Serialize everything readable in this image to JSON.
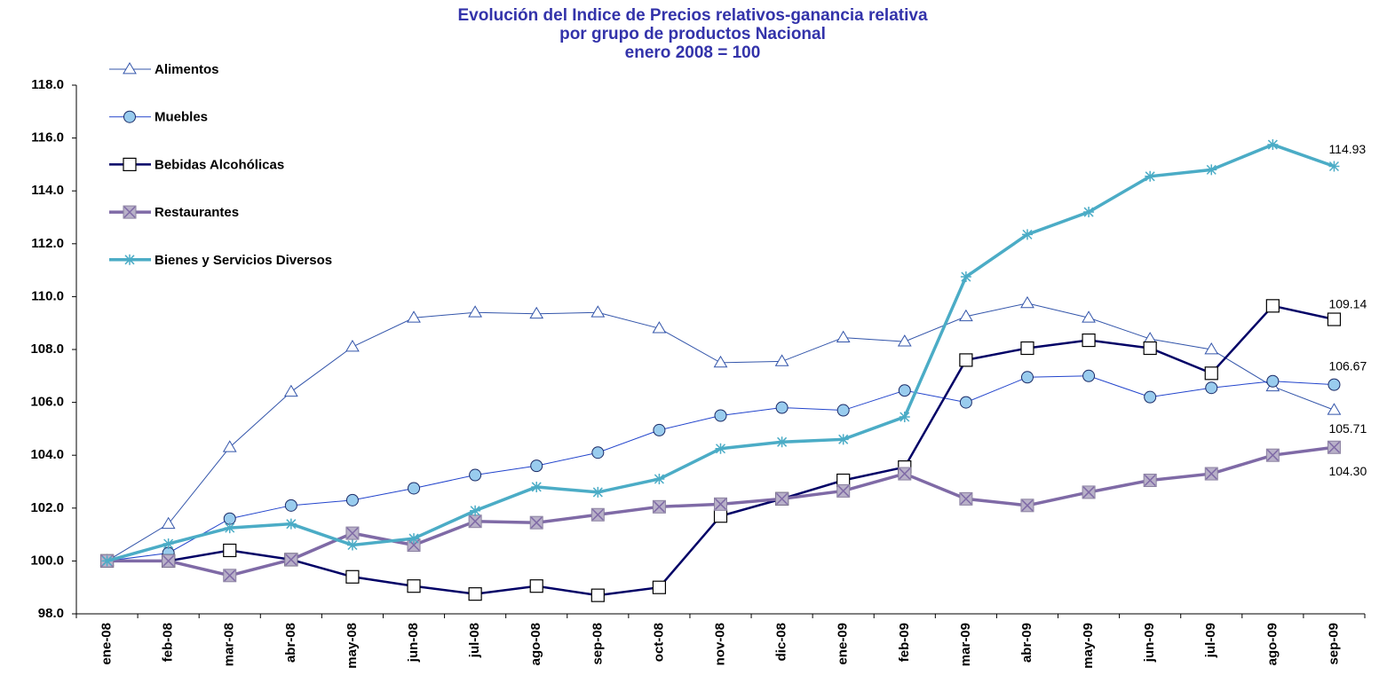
{
  "chart_data": {
    "type": "line",
    "title": [
      "Evolución del Indice de Precios relativos-ganancia relativa",
      "por grupo de productos Nacional",
      "enero 2008 = 100"
    ],
    "categories": [
      "ene-08",
      "feb-08",
      "mar-08",
      "abr-08",
      "may-08",
      "jun-08",
      "jul-08",
      "ago-08",
      "sep-08",
      "oct-08",
      "nov-08",
      "dic-08",
      "ene-09",
      "feb-09",
      "mar-09",
      "abr-09",
      "may-09",
      "jun-09",
      "jul-09",
      "ago-09",
      "sep-09"
    ],
    "series": [
      {
        "name": "Alimentos",
        "color": "#3355aa",
        "marker": "triangle",
        "values": [
          100,
          101.4,
          104.3,
          106.4,
          108.1,
          109.2,
          109.4,
          109.35,
          109.4,
          108.8,
          107.5,
          107.55,
          108.45,
          108.3,
          109.25,
          109.75,
          109.2,
          108.4,
          108.0,
          106.6,
          105.71
        ],
        "value_labels": [
          null,
          null,
          null,
          null,
          null,
          null,
          null,
          null,
          null,
          null,
          null,
          null,
          null,
          null,
          null,
          null,
          null,
          null,
          null,
          null,
          "105.71"
        ]
      },
      {
        "name": "Muebles",
        "color": "#2244cc",
        "marker": "circle",
        "values": [
          100,
          100.3,
          101.6,
          102.1,
          102.3,
          102.75,
          103.25,
          103.6,
          104.1,
          104.95,
          105.5,
          105.8,
          105.7,
          106.45,
          106.0,
          106.95,
          107.0,
          106.2,
          106.55,
          106.8,
          106.67
        ],
        "value_labels": [
          null,
          null,
          null,
          null,
          null,
          null,
          null,
          null,
          null,
          null,
          null,
          null,
          null,
          null,
          null,
          null,
          null,
          null,
          null,
          null,
          "106.67"
        ]
      },
      {
        "name": "Bebidas Alcohólicas",
        "color": "#000066",
        "marker": "square",
        "values": [
          100,
          100,
          100.4,
          100.05,
          99.4,
          99.05,
          98.75,
          99.05,
          98.7,
          99.0,
          101.7,
          102.35,
          103.05,
          103.55,
          107.6,
          108.05,
          108.35,
          108.05,
          107.1,
          109.65,
          109.14
        ],
        "value_labels": [
          null,
          null,
          null,
          null,
          null,
          null,
          null,
          null,
          null,
          null,
          null,
          null,
          null,
          null,
          null,
          null,
          null,
          null,
          null,
          null,
          "109.14"
        ]
      },
      {
        "name": "Restaurantes",
        "color": "#7f6aa6",
        "marker": "xsquare",
        "values": [
          100,
          100,
          99.45,
          100.05,
          101.05,
          100.6,
          101.5,
          101.45,
          101.75,
          102.05,
          102.15,
          102.35,
          102.65,
          103.3,
          102.35,
          102.1,
          102.6,
          103.05,
          103.3,
          104.0,
          104.3
        ],
        "value_labels": [
          null,
          null,
          null,
          null,
          null,
          null,
          null,
          null,
          null,
          null,
          null,
          null,
          null,
          null,
          null,
          null,
          null,
          null,
          null,
          null,
          "104.30"
        ]
      },
      {
        "name": "Bienes y Servicios Diversos",
        "color": "#4bacc6",
        "marker": "star",
        "values": [
          100,
          100.65,
          101.25,
          101.4,
          100.6,
          100.85,
          101.9,
          102.8,
          102.6,
          103.1,
          104.25,
          104.5,
          104.6,
          105.45,
          110.75,
          112.35,
          113.2,
          114.55,
          114.8,
          115.75,
          114.93
        ],
        "value_labels": [
          null,
          null,
          null,
          null,
          null,
          null,
          null,
          null,
          null,
          null,
          null,
          null,
          null,
          null,
          null,
          null,
          null,
          null,
          null,
          null,
          "114.93"
        ]
      }
    ],
    "ylim": [
      98,
      118
    ],
    "yticks": [
      {
        "value": 98,
        "label": "98.0"
      },
      {
        "value": 100,
        "label": "100.0"
      },
      {
        "value": 102,
        "label": "102.0"
      },
      {
        "value": 104,
        "label": "104.0"
      },
      {
        "value": 106,
        "label": "106.0"
      },
      {
        "value": 108,
        "label": "108.0"
      },
      {
        "value": 110,
        "label": "110.0"
      },
      {
        "value": 112,
        "label": "112.0"
      },
      {
        "value": 114,
        "label": "114.0"
      },
      {
        "value": 116,
        "label": "116.0"
      },
      {
        "value": 118,
        "label": "118.0"
      }
    ],
    "grid": false,
    "legend": "top-left"
  }
}
